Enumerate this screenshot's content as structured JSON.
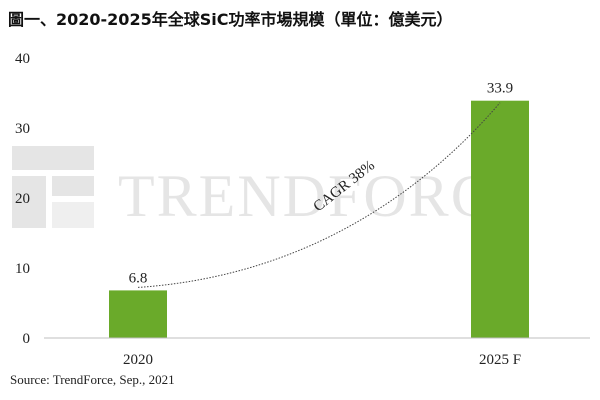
{
  "chart_data": {
    "type": "bar",
    "title": "圖一、2020-2025年全球SiC功率市場規模（單位：億美元）",
    "categories": [
      "2020",
      "2025 F"
    ],
    "values": [
      6.8,
      33.9
    ],
    "value_labels": [
      "6.8",
      "33.9"
    ],
    "xlabel": "",
    "ylabel": "",
    "ylim": [
      0,
      40
    ],
    "yticks": [
      0,
      10,
      20,
      30,
      40
    ],
    "grid": false,
    "legend": "none",
    "bar_color": "#6aaa2a",
    "annotations": [
      {
        "text": "CAGR 38%",
        "kind": "trend-curve"
      }
    ],
    "source": "Source: TrendForce, Sep., 2021",
    "watermark": "TRENDFORCE"
  }
}
